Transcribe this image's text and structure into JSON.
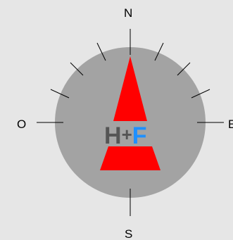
{
  "compass": {
    "cardinals": {
      "north": "N",
      "south": "S",
      "west": "O",
      "east": "E"
    },
    "logo": {
      "part1": "H",
      "part2": "+",
      "part3": "F"
    },
    "colors": {
      "background": "#e6e6e6",
      "dial": "#a3a3a3",
      "needle": "#ff0000",
      "logo_dark": "#555555",
      "logo_accent": "#1e90ff",
      "ticks": "#000000"
    }
  }
}
